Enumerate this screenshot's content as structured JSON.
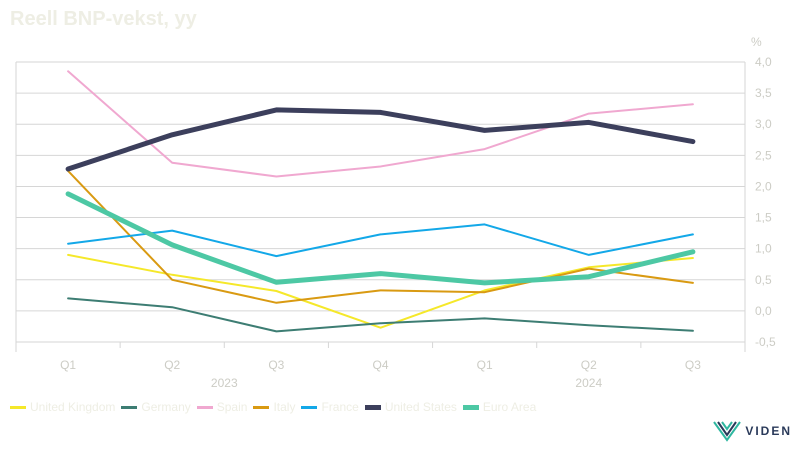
{
  "chart_data": {
    "type": "line",
    "title": "Reell BNP-vekst, yy",
    "ylabel": "%",
    "ylim": [
      -0.5,
      4.0
    ],
    "ytick_values": [
      4.0,
      3.5,
      3.0,
      2.5,
      2.0,
      1.5,
      1.0,
      0.5,
      0.0,
      -0.5
    ],
    "ytick_labels": [
      "4,0",
      "3,5",
      "3,0",
      "2,5",
      "2,0",
      "1,5",
      "1,0",
      "0,5",
      "0,0",
      "-0,5"
    ],
    "categories": [
      "Q1",
      "Q2",
      "Q3",
      "Q4",
      "Q1",
      "Q2",
      "Q3"
    ],
    "year_labels": [
      {
        "label": "2023",
        "position": 1.5
      },
      {
        "label": "2024",
        "position": 5
      }
    ],
    "grid": true,
    "legend_position": "bottom",
    "series": [
      {
        "name": "United Kingdom",
        "color": "#f5e82a",
        "width": 2,
        "values": [
          0.9,
          0.58,
          0.32,
          -0.27,
          0.33,
          0.7,
          0.85
        ]
      },
      {
        "name": "Germany",
        "color": "#3d7d73",
        "width": 2,
        "values": [
          0.2,
          0.06,
          -0.33,
          -0.2,
          -0.12,
          -0.23,
          -0.32
        ]
      },
      {
        "name": "Spain",
        "color": "#f0a8d0",
        "width": 2,
        "values": [
          3.85,
          2.38,
          2.16,
          2.32,
          2.6,
          3.17,
          3.32
        ]
      },
      {
        "name": "Italy",
        "color": "#d99a12",
        "width": 2,
        "values": [
          2.25,
          0.5,
          0.13,
          0.33,
          0.3,
          0.68,
          0.45
        ]
      },
      {
        "name": "France",
        "color": "#13a8e8",
        "width": 2,
        "values": [
          1.08,
          1.29,
          0.88,
          1.23,
          1.39,
          0.9,
          1.23
        ]
      },
      {
        "name": "United States",
        "color": "#3c3f5c",
        "width": 5,
        "values": [
          2.28,
          2.83,
          3.23,
          3.19,
          2.9,
          3.03,
          2.72
        ]
      },
      {
        "name": "Euro Area",
        "color": "#4dc8a4",
        "width": 5,
        "values": [
          1.88,
          1.06,
          0.46,
          0.6,
          0.45,
          0.55,
          0.95
        ]
      }
    ]
  },
  "logo": {
    "text": "VIDEN"
  }
}
